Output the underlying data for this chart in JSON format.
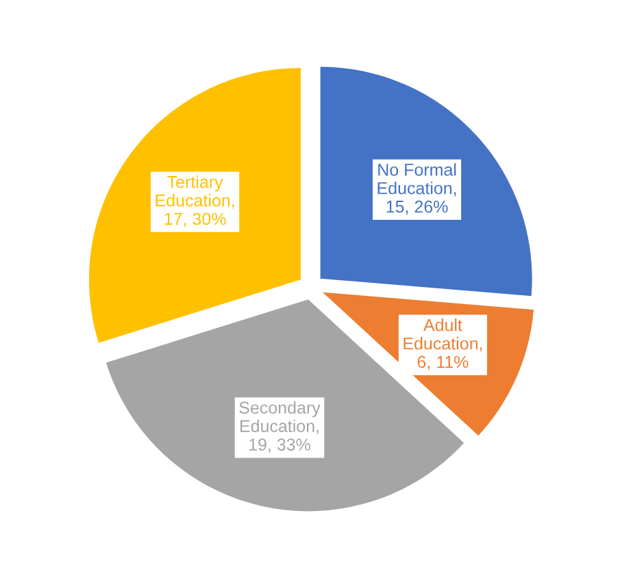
{
  "chart_data": {
    "type": "pie",
    "categories": [
      "No Formal Education",
      "Adult Education",
      "Secondary Education",
      "Tertiary Education"
    ],
    "values": [
      15,
      6,
      19,
      17
    ],
    "colors": [
      "#4472c4",
      "#ed7d31",
      "#a5a5a5",
      "#ffc000"
    ],
    "value_labels": [
      ", 15, 26%",
      ", 6, 11%",
      ", 19, 33%",
      ", 17, 30%"
    ],
    "legend": false
  }
}
